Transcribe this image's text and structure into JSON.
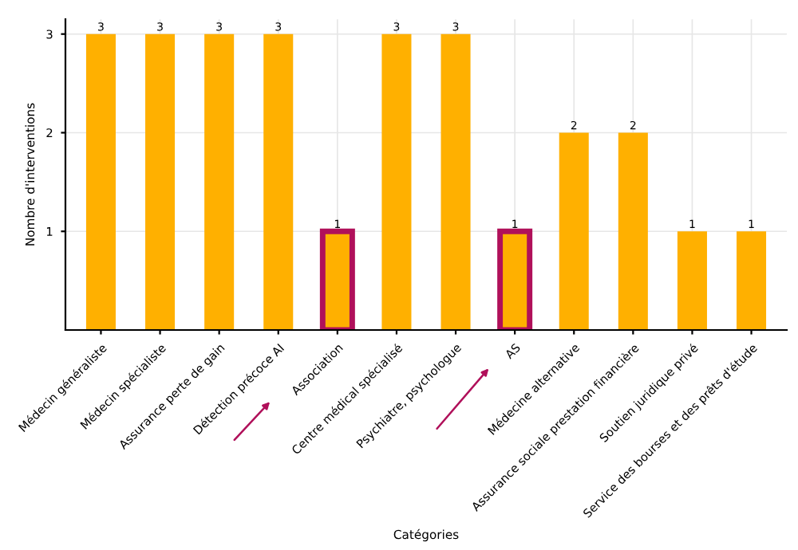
{
  "chart_data": {
    "type": "bar",
    "xlabel": "Catégories",
    "ylabel": "Nombre d'interventions",
    "categories": [
      "Médecin généraliste",
      "Médecin spécialiste",
      "Assurance perte de gain",
      "Détection précoce AI",
      "Association",
      "Centre médical spécialisé",
      "Psychiatre, psychologue",
      "AS",
      "Médecine alternative",
      "Assurance sociale prestation financière",
      "Soutien juridique privé",
      "Service des bourses et des prêts d'étude"
    ],
    "values": [
      3,
      3,
      3,
      3,
      1,
      3,
      3,
      1,
      2,
      2,
      1,
      1
    ],
    "color": "#ffb000",
    "ylim": [
      0,
      3.15
    ],
    "yticks": [
      1,
      2,
      3
    ],
    "grid": true,
    "data_labels": true
  }
}
